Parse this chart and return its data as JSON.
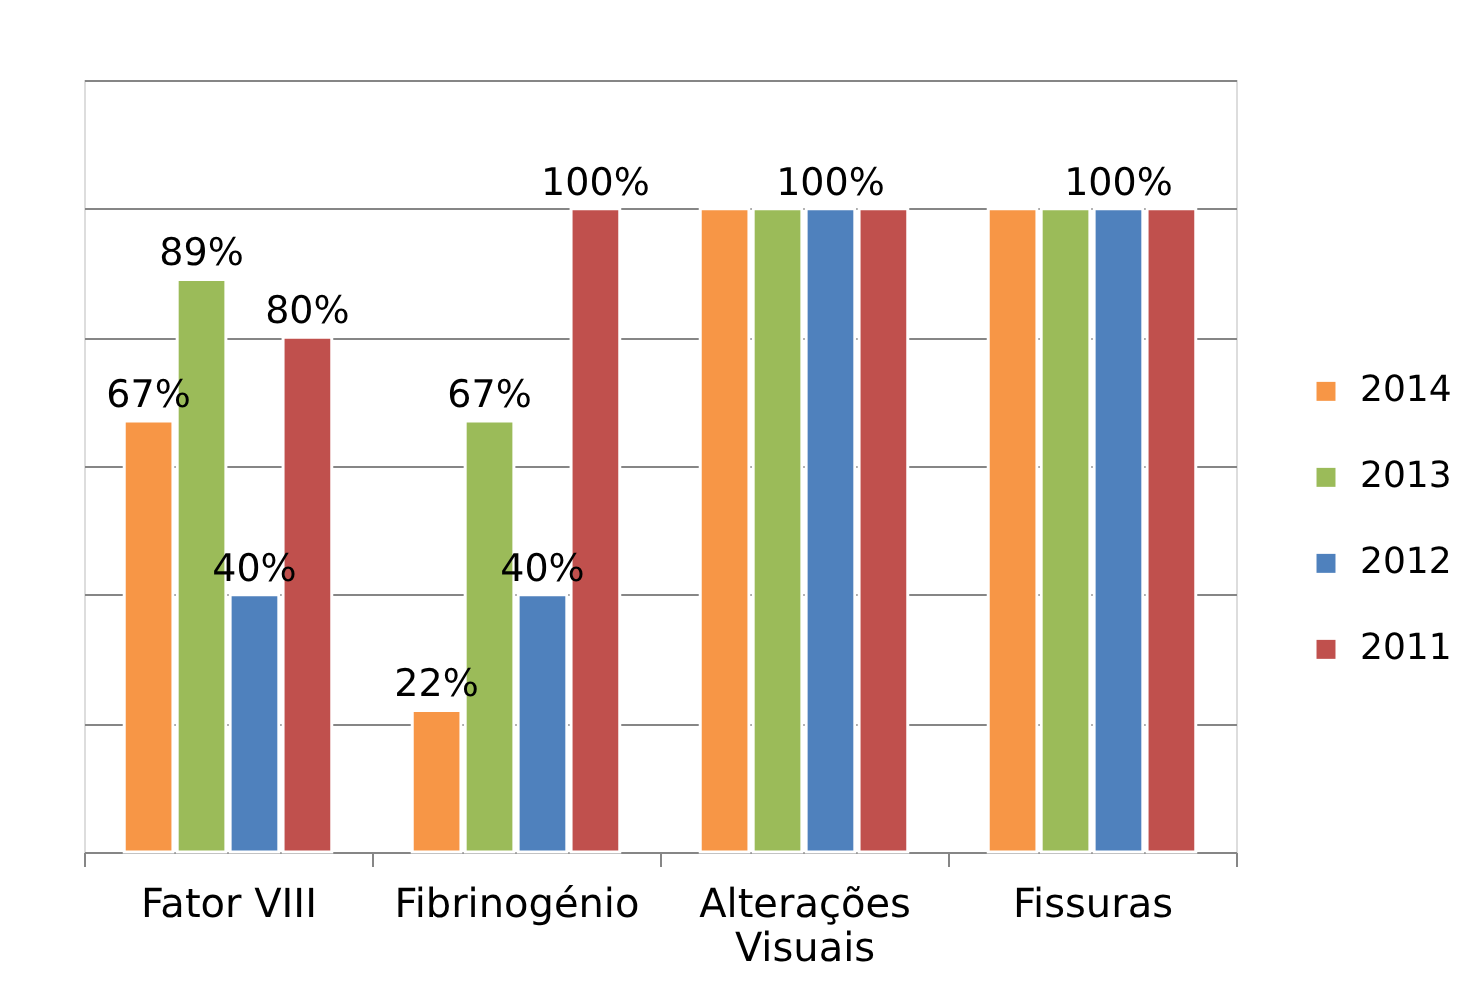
{
  "chart_data": {
    "type": "bar",
    "categories": [
      "Fator VIII",
      "Fibrinogénio",
      "Alterações Visuais",
      "Fissuras"
    ],
    "series": [
      {
        "name": "2014",
        "color": "#f79646",
        "values": [
          67,
          22,
          100,
          100
        ],
        "value_labels": [
          "67%",
          "22%",
          null,
          null
        ]
      },
      {
        "name": "2013",
        "color": "#9bbb59",
        "values": [
          89,
          67,
          100,
          100
        ],
        "value_labels": [
          "89%",
          "67%",
          null,
          null
        ]
      },
      {
        "name": "2012",
        "color": "#4f81bd",
        "values": [
          40,
          40,
          100,
          100
        ],
        "value_labels": [
          "40%",
          "40%",
          "100%",
          "100%"
        ]
      },
      {
        "name": "2011",
        "color": "#c0504d",
        "values": [
          80,
          100,
          100,
          100
        ],
        "value_labels": [
          "80%",
          "100%",
          null,
          null
        ]
      }
    ],
    "ylim": [
      0,
      120
    ],
    "yticks": [
      {
        "value": 0,
        "label": null
      },
      {
        "value": 20,
        "label": null
      },
      {
        "value": 40,
        "label": null
      },
      {
        "value": 60,
        "label": null
      },
      {
        "value": 80,
        "label": null
      },
      {
        "value": 100,
        "label": null
      },
      {
        "value": 120,
        "label": null
      }
    ],
    "grid": "y",
    "legend": "right",
    "tick_labels": "x"
  }
}
